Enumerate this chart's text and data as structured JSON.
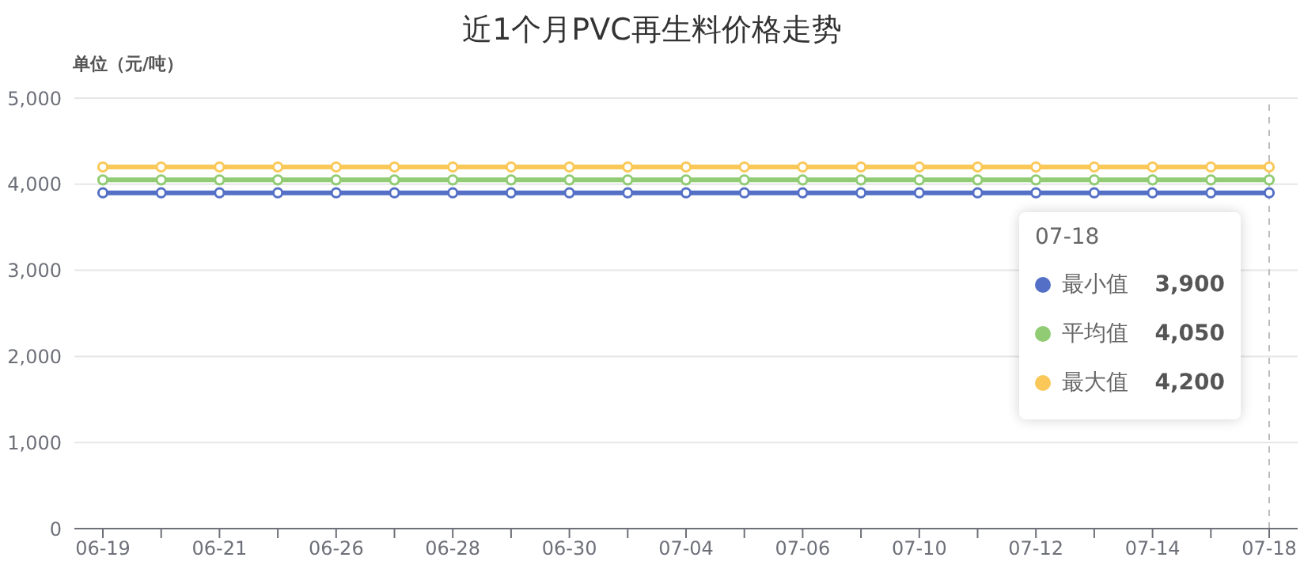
{
  "chart_data": {
    "type": "line",
    "title": "近1个月PVC再生料价格走势",
    "ylabel": "单位（元/吨）",
    "categories": [
      "06-19",
      null,
      "06-21",
      null,
      "06-26",
      null,
      "06-28",
      null,
      "06-30",
      null,
      "07-04",
      null,
      "07-06",
      null,
      "07-10",
      null,
      "07-12",
      null,
      "07-14",
      null,
      "07-18"
    ],
    "series": [
      {
        "name": "最小值",
        "color": "#5470c6",
        "values": [
          3900,
          3900,
          3900,
          3900,
          3900,
          3900,
          3900,
          3900,
          3900,
          3900,
          3900,
          3900,
          3900,
          3900,
          3900,
          3900,
          3900,
          3900,
          3900,
          3900,
          3900
        ]
      },
      {
        "name": "平均值",
        "color": "#91cc75",
        "values": [
          4050,
          4050,
          4050,
          4050,
          4050,
          4050,
          4050,
          4050,
          4050,
          4050,
          4050,
          4050,
          4050,
          4050,
          4050,
          4050,
          4050,
          4050,
          4050,
          4050,
          4050
        ]
      },
      {
        "name": "最大值",
        "color": "#fac858",
        "values": [
          4200,
          4200,
          4200,
          4200,
          4200,
          4200,
          4200,
          4200,
          4200,
          4200,
          4200,
          4200,
          4200,
          4200,
          4200,
          4200,
          4200,
          4200,
          4200,
          4200,
          4200
        ]
      }
    ],
    "annotations": [
      "3,900",
      "4,050",
      "4,200"
    ],
    "ylim": [
      0,
      5000
    ],
    "yticks": [
      {
        "value": 0,
        "label": "0"
      },
      {
        "value": 1000,
        "label": "1,000"
      },
      {
        "value": 2000,
        "label": "2,000"
      },
      {
        "value": 3000,
        "label": "3,000"
      },
      {
        "value": 4000,
        "label": "4,000"
      },
      {
        "value": 5000,
        "label": "5,000"
      }
    ],
    "grid": "y",
    "legend": "right",
    "marker": "circle",
    "line_style": "solid",
    "ref_lines": [
      {
        "axis": "x",
        "value": "07-18",
        "color": "#bbbbbb",
        "line_style": "dashed"
      }
    ]
  }
}
